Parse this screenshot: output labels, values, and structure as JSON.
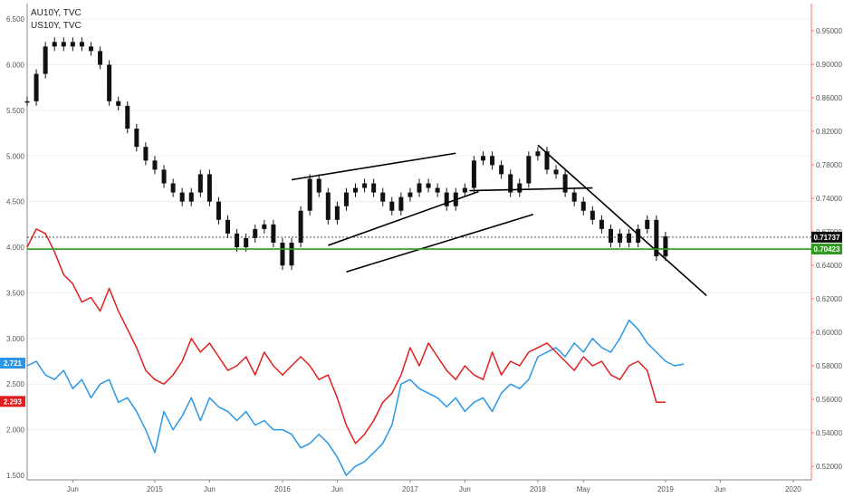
{
  "legend": [
    "AU10Y, TVC",
    "US10Y, TVC"
  ],
  "colors": {
    "candles": "#111111",
    "au_line": "#e11d1d",
    "us_line": "#2a97e6",
    "support": "#2e9b1f",
    "axis_right": "#f07070",
    "axis_left": "#888888",
    "grid": "#eeeeee",
    "label_blue": "#2a97e6",
    "label_red": "#e11d1d",
    "label_black": "#111111",
    "label_green": "#2e9b1f"
  },
  "chart_data": {
    "type": "line",
    "series_names": [
      "AU10Y, TVC",
      "US10Y, TVC"
    ],
    "x_ticks": [
      "Jun",
      "2015",
      "Jun",
      "2016",
      "Jun",
      "2017",
      "Jun",
      "2018",
      "May",
      "2019",
      "Jun",
      "2020"
    ],
    "x_tick_index": [
      5,
      14,
      20,
      28,
      34,
      42,
      48,
      56,
      61,
      70,
      76,
      84
    ],
    "x_range": [
      0,
      86
    ],
    "left_axis": {
      "ticks": [
        "6.500",
        "6.000",
        "5.500",
        "5.000",
        "4.500",
        "4.000",
        "3.500",
        "3.000",
        "2.500",
        "2.000",
        "1.500"
      ],
      "values": [
        6.5,
        6.0,
        5.5,
        5.0,
        4.5,
        4.0,
        3.5,
        3.0,
        2.5,
        2.0,
        1.5
      ],
      "range": [
        1.45,
        6.67
      ]
    },
    "right_axis": {
      "ticks": [
        "0.95000",
        "0.90000",
        "0.86000",
        "0.82000",
        "0.78000",
        "0.74000",
        "0.67000",
        "0.64000",
        "0.62000",
        "0.60000",
        "0.58000",
        "0.56000",
        "0.54000",
        "0.52000"
      ],
      "values": [
        0.95,
        0.9,
        0.86,
        0.82,
        0.78,
        0.74,
        0.67,
        0.64,
        0.62,
        0.6,
        0.58,
        0.56,
        0.54,
        0.52
      ]
    },
    "price_labels": {
      "us": "2.721",
      "au": "2.293",
      "last": "0.71737",
      "support": "0.70423"
    },
    "levels": {
      "last_left": 4.11,
      "support_left": 3.98,
      "us_label_left": 2.73,
      "au_label_left": 2.31
    },
    "candles": {
      "idx": [
        0,
        1,
        2,
        3,
        4,
        5,
        6,
        7,
        8,
        9,
        10,
        11,
        12,
        13,
        14,
        15,
        16,
        17,
        18,
        19,
        20,
        21,
        22,
        23,
        24,
        25,
        26,
        27,
        28,
        29,
        30,
        31,
        32,
        33,
        34,
        35,
        36,
        37,
        38,
        39,
        40,
        41,
        42,
        43,
        44,
        45,
        46,
        47,
        48,
        49,
        50,
        51,
        52,
        53,
        54,
        55,
        56,
        57,
        58,
        59,
        60,
        61,
        62,
        63,
        64,
        65,
        66,
        67,
        68,
        69,
        70
      ],
      "close": [
        5.6,
        5.9,
        6.2,
        6.25,
        6.2,
        6.25,
        6.2,
        6.15,
        6.0,
        5.6,
        5.55,
        5.3,
        5.1,
        4.95,
        4.85,
        4.7,
        4.6,
        4.5,
        4.6,
        4.8,
        4.5,
        4.3,
        4.15,
        4.0,
        4.1,
        4.2,
        4.25,
        4.05,
        3.8,
        4.05,
        4.4,
        4.75,
        4.6,
        4.3,
        4.45,
        4.6,
        4.65,
        4.7,
        4.6,
        4.5,
        4.4,
        4.55,
        4.6,
        4.7,
        4.65,
        4.6,
        4.45,
        4.6,
        4.65,
        4.95,
        5.0,
        4.9,
        4.8,
        4.6,
        4.7,
        5.0,
        5.05,
        4.85,
        4.8,
        4.6,
        4.5,
        4.4,
        4.3,
        4.2,
        4.05,
        4.15,
        4.05,
        4.2,
        4.3,
        3.9,
        4.12
      ]
    },
    "au_line": {
      "idx": [
        0,
        1,
        2,
        3,
        4,
        5,
        6,
        7,
        8,
        9,
        10,
        11,
        12,
        13,
        14,
        15,
        16,
        17,
        18,
        19,
        20,
        21,
        22,
        23,
        24,
        25,
        26,
        27,
        28,
        29,
        30,
        31,
        32,
        33,
        34,
        35,
        36,
        37,
        38,
        39,
        40,
        41,
        42,
        43,
        44,
        45,
        46,
        47,
        48,
        49,
        50,
        51,
        52,
        53,
        54,
        55,
        56,
        57,
        58,
        59,
        60,
        61,
        62,
        63,
        64,
        65,
        66,
        67,
        68,
        69,
        70
      ],
      "value": [
        4.0,
        4.2,
        4.15,
        3.95,
        3.7,
        3.6,
        3.4,
        3.45,
        3.3,
        3.55,
        3.3,
        3.1,
        2.9,
        2.65,
        2.55,
        2.5,
        2.6,
        2.75,
        3.0,
        2.85,
        2.95,
        2.8,
        2.65,
        2.7,
        2.8,
        2.6,
        2.85,
        2.7,
        2.6,
        2.7,
        2.8,
        2.7,
        2.55,
        2.6,
        2.35,
        2.05,
        1.85,
        1.95,
        2.1,
        2.3,
        2.4,
        2.6,
        2.9,
        2.7,
        2.95,
        2.8,
        2.65,
        2.55,
        2.7,
        2.6,
        2.55,
        2.85,
        2.6,
        2.75,
        2.7,
        2.85,
        2.9,
        2.95,
        2.85,
        2.75,
        2.65,
        2.8,
        2.7,
        2.75,
        2.6,
        2.55,
        2.7,
        2.75,
        2.65,
        2.3,
        2.3
      ]
    },
    "us_line": {
      "idx": [
        0,
        1,
        2,
        3,
        4,
        5,
        6,
        7,
        8,
        9,
        10,
        11,
        12,
        13,
        14,
        15,
        16,
        17,
        18,
        19,
        20,
        21,
        22,
        23,
        24,
        25,
        26,
        27,
        28,
        29,
        30,
        31,
        32,
        33,
        34,
        35,
        36,
        37,
        38,
        39,
        40,
        41,
        42,
        43,
        44,
        45,
        46,
        47,
        48,
        49,
        50,
        51,
        52,
        53,
        54,
        55,
        56,
        57,
        58,
        59,
        60,
        61,
        62,
        63,
        64,
        65,
        66,
        67,
        68,
        69,
        70,
        71,
        72
      ],
      "value": [
        2.7,
        2.75,
        2.6,
        2.55,
        2.65,
        2.45,
        2.55,
        2.35,
        2.5,
        2.55,
        2.3,
        2.35,
        2.2,
        2.0,
        1.75,
        2.2,
        2.0,
        2.15,
        2.35,
        2.1,
        2.35,
        2.25,
        2.2,
        2.1,
        2.2,
        2.05,
        2.1,
        2.0,
        2.0,
        1.95,
        1.8,
        1.85,
        1.95,
        1.85,
        1.7,
        1.5,
        1.6,
        1.65,
        1.75,
        1.85,
        2.05,
        2.5,
        2.55,
        2.45,
        2.4,
        2.35,
        2.25,
        2.35,
        2.2,
        2.3,
        2.35,
        2.2,
        2.4,
        2.5,
        2.45,
        2.55,
        2.8,
        2.85,
        2.9,
        2.8,
        2.95,
        2.85,
        3.0,
        2.9,
        2.85,
        3.0,
        3.2,
        3.1,
        2.95,
        2.85,
        2.75,
        2.7,
        2.72
      ]
    },
    "trendlines": [
      {
        "from": [
          29.0,
          4.74
        ],
        "to": [
          47.0,
          5.03
        ]
      },
      {
        "from": [
          33.0,
          4.02
        ],
        "to": [
          49.5,
          4.61
        ]
      },
      {
        "from": [
          35.0,
          3.73
        ],
        "to": [
          55.5,
          4.36
        ]
      },
      {
        "from": [
          56.0,
          5.12
        ],
        "to": [
          74.5,
          3.47
        ]
      },
      {
        "from": [
          48.5,
          4.62
        ],
        "to": [
          62.0,
          4.65
        ]
      }
    ],
    "trendline_series": [
      "upper-channel",
      "lower-channel",
      "rising-support",
      "falling-resistance",
      "rounding-top"
    ]
  }
}
